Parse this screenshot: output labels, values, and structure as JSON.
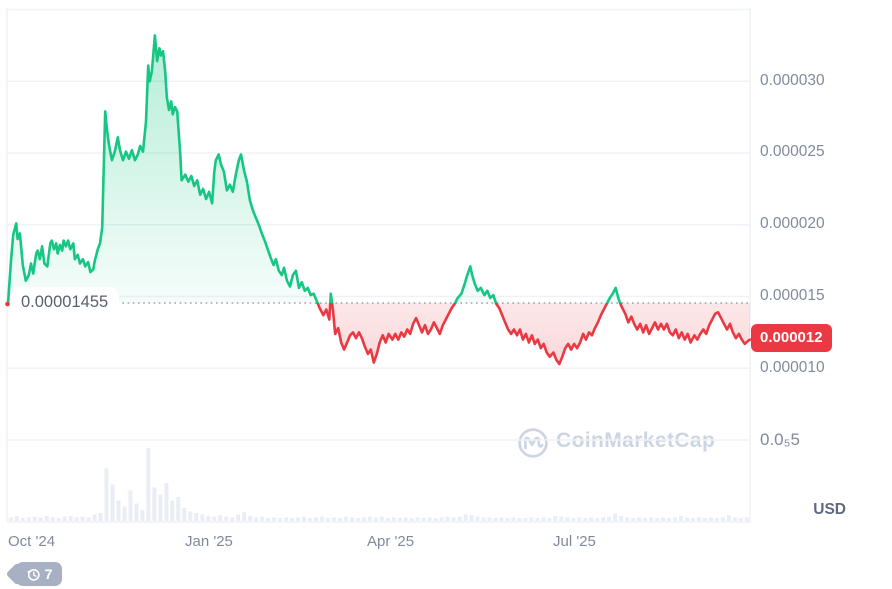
{
  "watermark": {
    "text": "CoinMarketCap"
  },
  "history_badge": {
    "count": "7"
  },
  "chart_data": {
    "type": "line",
    "title": "",
    "xlabel": "",
    "ylabel": "",
    "currency_label": "USD",
    "unit_note": "prices stored in units of 0.000001 USD",
    "baseline": {
      "value_e6": 14.55,
      "label": "0.00001455"
    },
    "current_price": {
      "value_e6": 12,
      "label": "0.000012"
    },
    "ylim_e6": [
      0,
      35
    ],
    "grid": true,
    "gridline_values_e6": [
      35,
      30,
      25,
      20,
      15,
      10,
      5
    ],
    "y_ticks": [
      {
        "value_e6": 30,
        "label": "0.000030"
      },
      {
        "value_e6": 25,
        "label": "0.000025"
      },
      {
        "value_e6": 20,
        "label": "0.000020"
      },
      {
        "value_e6": 15,
        "label": "0.000015"
      },
      {
        "value_e6": 10,
        "label": "0.000010"
      },
      {
        "value_e6": 5,
        "label": "0.0₅5"
      }
    ],
    "x_ticks": [
      {
        "label": "Oct '24",
        "t": 0.0
      },
      {
        "label": "Jan '25",
        "t": 0.2385
      },
      {
        "label": "Apr '25",
        "t": 0.4838
      },
      {
        "label": "Jul '25",
        "t": 0.7345
      }
    ],
    "colors": {
      "up": "#16c784",
      "down": "#ea3943",
      "grid": "#eff2f6",
      "axis_text": "#808a9d",
      "volume": "#e9edf4",
      "baseline_dots": "#98a1b2",
      "badge_bg": "#ea3943"
    },
    "price_series": {
      "name": "Price",
      "points_t_pct_value_e6": [
        [
          0,
          14.5
        ],
        [
          0.4,
          17.5
        ],
        [
          0.7,
          19.3
        ],
        [
          1.1,
          20.1
        ],
        [
          1.3,
          19.0
        ],
        [
          1.6,
          19.4
        ],
        [
          2,
          17.2
        ],
        [
          2.4,
          16.1
        ],
        [
          2.8,
          16.5
        ],
        [
          3.1,
          17.3
        ],
        [
          3.4,
          16.6
        ],
        [
          3.8,
          18
        ],
        [
          4,
          18.2
        ],
        [
          4.3,
          17.6
        ],
        [
          4.6,
          18.5
        ],
        [
          4.9,
          17.3
        ],
        [
          5.3,
          17.1
        ],
        [
          5.7,
          18.7
        ],
        [
          5.9,
          18.9
        ],
        [
          6.2,
          18.3
        ],
        [
          6.5,
          18.7
        ],
        [
          6.7,
          18
        ],
        [
          7,
          18.6
        ],
        [
          7.3,
          18.2
        ],
        [
          7.5,
          18.9
        ],
        [
          7.8,
          18.5
        ],
        [
          8.1,
          18.9
        ],
        [
          8.4,
          18.3
        ],
        [
          8.8,
          18.7
        ],
        [
          9,
          17.6
        ],
        [
          9.4,
          17.9
        ],
        [
          9.7,
          17.3
        ],
        [
          10.1,
          17.6
        ],
        [
          10.4,
          17.1
        ],
        [
          10.8,
          17.4
        ],
        [
          11.1,
          16.7
        ],
        [
          11.5,
          16.9
        ],
        [
          11.7,
          17.5
        ],
        [
          12.1,
          18.3
        ],
        [
          12.4,
          18.7
        ],
        [
          12.7,
          19.8
        ],
        [
          13.1,
          27.9
        ],
        [
          13.3,
          26.8
        ],
        [
          13.6,
          25.6
        ],
        [
          14,
          24.5
        ],
        [
          14.4,
          25.1
        ],
        [
          14.8,
          26.1
        ],
        [
          15.1,
          25.2
        ],
        [
          15.5,
          24.5
        ],
        [
          15.9,
          25.1
        ],
        [
          16.3,
          24.6
        ],
        [
          16.7,
          25.2
        ],
        [
          17.1,
          24.5
        ],
        [
          17.5,
          24.9
        ],
        [
          17.8,
          25.5
        ],
        [
          18.2,
          25.1
        ],
        [
          18.6,
          27.2
        ],
        [
          18.9,
          31.1
        ],
        [
          19.1,
          30
        ],
        [
          19.4,
          30.7
        ],
        [
          19.8,
          33.2
        ],
        [
          20.1,
          31.4
        ],
        [
          20.4,
          32.3
        ],
        [
          20.6,
          31.8
        ],
        [
          20.9,
          32.1
        ],
        [
          21.2,
          30.6
        ],
        [
          21.4,
          28.9
        ],
        [
          21.7,
          28
        ],
        [
          22,
          28.6
        ],
        [
          22.2,
          27.7
        ],
        [
          22.5,
          28.2
        ],
        [
          22.8,
          27.9
        ],
        [
          23.2,
          25.1
        ],
        [
          23.4,
          23.1
        ],
        [
          23.9,
          23.5
        ],
        [
          24.3,
          23
        ],
        [
          24.7,
          23.4
        ],
        [
          25.1,
          22.7
        ],
        [
          25.5,
          23.1
        ],
        [
          25.9,
          22.1
        ],
        [
          26.3,
          22.5
        ],
        [
          26.7,
          21.8
        ],
        [
          27.1,
          22.3
        ],
        [
          27.5,
          21.5
        ],
        [
          27.8,
          23.7
        ],
        [
          28,
          24.5
        ],
        [
          28.4,
          24.9
        ],
        [
          28.7,
          24.2
        ],
        [
          29.1,
          23.7
        ],
        [
          29.5,
          22.4
        ],
        [
          29.9,
          22.8
        ],
        [
          30.3,
          22.3
        ],
        [
          30.7,
          23.5
        ],
        [
          31.1,
          24.5
        ],
        [
          31.4,
          24.9
        ],
        [
          31.8,
          23.8
        ],
        [
          32.2,
          23
        ],
        [
          32.6,
          21.7
        ],
        [
          33,
          21
        ],
        [
          33.4,
          20.5
        ],
        [
          33.8,
          20
        ],
        [
          34.2,
          19.4
        ],
        [
          34.6,
          18.9
        ],
        [
          35,
          18.3
        ],
        [
          35.4,
          17.7
        ],
        [
          35.8,
          17.2
        ],
        [
          36.1,
          17.6
        ],
        [
          36.5,
          16.8
        ],
        [
          36.9,
          16.5
        ],
        [
          37.2,
          17
        ],
        [
          37.6,
          16.1
        ],
        [
          38,
          15.7
        ],
        [
          38.4,
          16.5
        ],
        [
          38.8,
          16.8
        ],
        [
          39.2,
          15.6
        ],
        [
          39.6,
          16
        ],
        [
          40,
          15.4
        ],
        [
          40.4,
          15.6
        ],
        [
          40.8,
          15.1
        ],
        [
          41.2,
          15.2
        ],
        [
          41.6,
          14.7
        ],
        [
          42,
          14.2
        ],
        [
          42.5,
          13.7
        ],
        [
          42.9,
          14.1
        ],
        [
          43.3,
          13.4
        ],
        [
          43.5,
          15.2
        ],
        [
          43.8,
          14
        ],
        [
          44.1,
          12.4
        ],
        [
          44.5,
          12.8
        ],
        [
          44.9,
          11.8
        ],
        [
          45.3,
          11.3
        ],
        [
          45.7,
          11.8
        ],
        [
          46.1,
          12.3
        ],
        [
          46.5,
          12.5
        ],
        [
          46.9,
          12.1
        ],
        [
          47.3,
          12.5
        ],
        [
          47.7,
          12.1
        ],
        [
          48.1,
          11.5
        ],
        [
          48.5,
          11
        ],
        [
          48.9,
          11.3
        ],
        [
          49.3,
          10.4
        ],
        [
          49.7,
          11
        ],
        [
          50.1,
          11.8
        ],
        [
          50.5,
          12.3
        ],
        [
          50.9,
          11.8
        ],
        [
          51.3,
          12.4
        ],
        [
          51.8,
          12
        ],
        [
          52.2,
          12.4
        ],
        [
          52.6,
          12
        ],
        [
          53,
          12.5
        ],
        [
          53.4,
          12.2
        ],
        [
          53.8,
          12.7
        ],
        [
          54.2,
          12.4
        ],
        [
          54.6,
          13.1
        ],
        [
          55,
          13.5
        ],
        [
          55.4,
          13
        ],
        [
          55.8,
          12.5
        ],
        [
          56.2,
          13
        ],
        [
          56.6,
          12.4
        ],
        [
          57,
          12.7
        ],
        [
          57.4,
          13.2
        ],
        [
          57.8,
          12.8
        ],
        [
          58.2,
          12.4
        ],
        [
          58.6,
          13
        ],
        [
          59,
          13.4
        ],
        [
          59.4,
          13.8
        ],
        [
          59.8,
          14.2
        ],
        [
          60.2,
          14.5
        ],
        [
          60.6,
          14.9
        ],
        [
          61.1,
          15.2
        ],
        [
          61.5,
          15.8
        ],
        [
          61.9,
          16.5
        ],
        [
          62.3,
          17.1
        ],
        [
          62.5,
          16.6
        ],
        [
          62.9,
          15.9
        ],
        [
          63.3,
          15.4
        ],
        [
          63.7,
          15.6
        ],
        [
          64.2,
          15.1
        ],
        [
          64.6,
          15.4
        ],
        [
          65,
          14.9
        ],
        [
          65.4,
          15.1
        ],
        [
          65.8,
          14.5
        ],
        [
          66.2,
          14.2
        ],
        [
          66.6,
          13.7
        ],
        [
          67,
          13.2
        ],
        [
          67.4,
          12.7
        ],
        [
          67.8,
          12.4
        ],
        [
          68.2,
          12.7
        ],
        [
          68.6,
          12.3
        ],
        [
          69,
          12.7
        ],
        [
          69.4,
          12
        ],
        [
          69.8,
          12.4
        ],
        [
          70.2,
          11.8
        ],
        [
          70.6,
          12.3
        ],
        [
          71,
          11.7
        ],
        [
          71.4,
          12
        ],
        [
          71.8,
          11.4
        ],
        [
          72.2,
          11.7
        ],
        [
          72.6,
          11.1
        ],
        [
          73,
          10.8
        ],
        [
          73.5,
          11.1
        ],
        [
          73.9,
          10.6
        ],
        [
          74.3,
          10.3
        ],
        [
          74.7,
          10.8
        ],
        [
          75.1,
          11.4
        ],
        [
          75.5,
          11.7
        ],
        [
          75.9,
          11.3
        ],
        [
          76.3,
          11.7
        ],
        [
          76.7,
          11.4
        ],
        [
          77.1,
          11.8
        ],
        [
          77.5,
          12.4
        ],
        [
          77.9,
          12
        ],
        [
          78.3,
          12.5
        ],
        [
          78.7,
          12.3
        ],
        [
          79.1,
          12.8
        ],
        [
          79.5,
          13.2
        ],
        [
          79.9,
          13.7
        ],
        [
          80.3,
          14.1
        ],
        [
          80.7,
          14.5
        ],
        [
          81.1,
          14.9
        ],
        [
          81.5,
          15.2
        ],
        [
          81.9,
          15.6
        ],
        [
          82.3,
          14.8
        ],
        [
          82.7,
          14.3
        ],
        [
          83.2,
          13.8
        ],
        [
          83.6,
          13.2
        ],
        [
          84,
          13.6
        ],
        [
          84.4,
          13.1
        ],
        [
          84.8,
          12.7
        ],
        [
          85.2,
          13.1
        ],
        [
          85.6,
          12.5
        ],
        [
          86,
          13
        ],
        [
          86.4,
          12.4
        ],
        [
          86.8,
          12.8
        ],
        [
          87.2,
          13.2
        ],
        [
          87.6,
          12.7
        ],
        [
          88,
          13.1
        ],
        [
          88.4,
          12.7
        ],
        [
          88.8,
          13.1
        ],
        [
          89.2,
          12.5
        ],
        [
          89.6,
          12.3
        ],
        [
          90,
          12.7
        ],
        [
          90.4,
          12.1
        ],
        [
          90.8,
          12.5
        ],
        [
          91.2,
          12
        ],
        [
          91.6,
          12.4
        ],
        [
          92,
          11.8
        ],
        [
          92.5,
          12.3
        ],
        [
          92.9,
          12
        ],
        [
          93.3,
          12.4
        ],
        [
          93.7,
          12.7
        ],
        [
          94.1,
          12.4
        ],
        [
          94.5,
          13
        ],
        [
          94.9,
          13.4
        ],
        [
          95.3,
          13.8
        ],
        [
          95.7,
          13.9
        ],
        [
          96.1,
          13.5
        ],
        [
          96.5,
          13.1
        ],
        [
          96.9,
          12.7
        ],
        [
          97.3,
          13.1
        ],
        [
          97.7,
          12.5
        ],
        [
          98.1,
          12.1
        ],
        [
          98.5,
          12.4
        ],
        [
          98.9,
          12
        ],
        [
          99.3,
          11.7
        ],
        [
          99.7,
          11.9
        ],
        [
          100,
          12
        ]
      ]
    },
    "volume_series": {
      "name": "Volume",
      "heights_rel": [
        0.05,
        0.07,
        0.04,
        0.05,
        0.06,
        0.05,
        0.07,
        0.05,
        0.04,
        0.06,
        0.07,
        0.05,
        0.06,
        0.05,
        0.09,
        0.11,
        0.72,
        0.5,
        0.28,
        0.2,
        0.42,
        0.24,
        0.15,
        1,
        0.46,
        0.36,
        0.52,
        0.28,
        0.33,
        0.18,
        0.13,
        0.11,
        0.09,
        0.07,
        0.06,
        0.08,
        0.06,
        0.05,
        0.09,
        0.12,
        0.07,
        0.05,
        0.06,
        0.04,
        0.05,
        0.04,
        0.05,
        0.04,
        0.05,
        0.06,
        0.04,
        0.05,
        0.06,
        0.04,
        0.05,
        0.04,
        0.06,
        0.05,
        0.04,
        0.05,
        0.06,
        0.05,
        0.06,
        0.04,
        0.05,
        0.04,
        0.05,
        0.04,
        0.05,
        0.04,
        0.05,
        0.04,
        0.05,
        0.06,
        0.05,
        0.06,
        0.09,
        0.08,
        0.06,
        0.05,
        0.05,
        0.04,
        0.05,
        0.04,
        0.05,
        0.04,
        0.04,
        0.05,
        0.04,
        0.05,
        0.04,
        0.07,
        0.06,
        0.05,
        0.04,
        0.05,
        0.04,
        0.05,
        0.04,
        0.05,
        0.06,
        0.1,
        0.07,
        0.05,
        0.04,
        0.05,
        0.04,
        0.05,
        0.04,
        0.05,
        0.04,
        0.05,
        0.07,
        0.05,
        0.04,
        0.05,
        0.04,
        0.05,
        0.04,
        0.05,
        0.08,
        0.05,
        0.04,
        0.05
      ]
    }
  }
}
